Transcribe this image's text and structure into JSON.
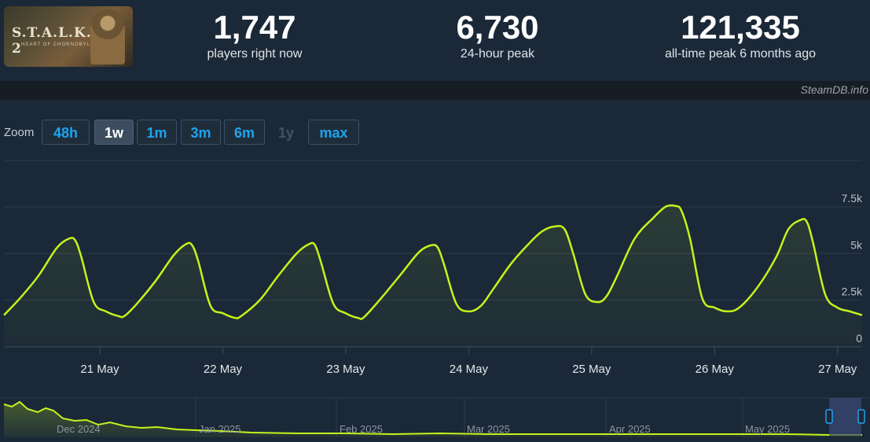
{
  "header": {
    "game_logo": "S.T.A.L.K.E.R. 2",
    "game_logo_sub": "HEART OF CHORNOBYL",
    "stats": [
      {
        "value": "1,747",
        "label": "players right now"
      },
      {
        "value": "6,730",
        "label": "24-hour peak"
      },
      {
        "value": "121,335",
        "label": "all-time peak 6 months ago"
      }
    ]
  },
  "credit": "SteamDB.info",
  "zoom": {
    "label": "Zoom",
    "buttons": [
      {
        "label": "48h",
        "state": "normal"
      },
      {
        "label": "1w",
        "state": "active"
      },
      {
        "label": "1m",
        "state": "normal"
      },
      {
        "label": "3m",
        "state": "normal"
      },
      {
        "label": "6m",
        "state": "normal"
      },
      {
        "label": "1y",
        "state": "disabled"
      },
      {
        "label": "max",
        "state": "normal"
      }
    ]
  },
  "colors": {
    "line": "#c3f41b",
    "grid": "#2e3b48",
    "background": "#1b2838"
  },
  "chart_data": {
    "type": "line",
    "title": "",
    "xlabel": "",
    "ylabel": "",
    "xlim": [
      20.22,
      27.2
    ],
    "ylim": [
      0,
      7500
    ],
    "y_ticks": [
      0,
      2500,
      5000,
      7500
    ],
    "y_tick_labels": [
      "0",
      "2.5k",
      "5k",
      "7.5k"
    ],
    "x_ticks": [
      21,
      22,
      23,
      24,
      25,
      26,
      27
    ],
    "x_tick_labels": [
      "21 May",
      "22 May",
      "23 May",
      "24 May",
      "25 May",
      "26 May",
      "27 May"
    ],
    "grid": true,
    "series": [
      {
        "name": "",
        "x": [
          20.22,
          20.35,
          20.5,
          20.65,
          20.75,
          20.8,
          20.85,
          20.95,
          21.05,
          21.15,
          21.2,
          21.3,
          21.45,
          21.6,
          21.7,
          21.75,
          21.8,
          21.9,
          22.0,
          22.1,
          22.15,
          22.3,
          22.45,
          22.6,
          22.7,
          22.75,
          22.8,
          22.9,
          23.0,
          23.1,
          23.15,
          23.3,
          23.45,
          23.6,
          23.7,
          23.75,
          23.8,
          23.9,
          24.0,
          24.1,
          24.2,
          24.35,
          24.5,
          24.6,
          24.7,
          24.78,
          24.85,
          24.95,
          25.05,
          25.12,
          25.2,
          25.35,
          25.5,
          25.6,
          25.68,
          25.73,
          25.8,
          25.9,
          26.0,
          26.1,
          26.2,
          26.35,
          26.5,
          26.6,
          26.7,
          26.75,
          26.8,
          26.9,
          27.0,
          27.1,
          27.2
        ],
        "y": [
          1700,
          2600,
          3800,
          5300,
          5800,
          5700,
          4800,
          2400,
          1900,
          1650,
          1650,
          2300,
          3500,
          4900,
          5500,
          5450,
          4600,
          2200,
          1800,
          1550,
          1650,
          2500,
          3800,
          5000,
          5500,
          5450,
          4500,
          2300,
          1800,
          1550,
          1600,
          2700,
          3900,
          5100,
          5450,
          5300,
          4400,
          2300,
          1900,
          2200,
          3100,
          4500,
          5600,
          6200,
          6450,
          6300,
          5000,
          2800,
          2400,
          2700,
          3700,
          5800,
          6900,
          7500,
          7550,
          7300,
          5800,
          2600,
          2100,
          1900,
          2100,
          3200,
          4800,
          6300,
          6800,
          6700,
          5600,
          2800,
          2100,
          1900,
          1700
        ]
      }
    ],
    "navigator": {
      "x_tick_labels": [
        "Dec 2024",
        "Jan 2025",
        "Feb 2025",
        "Mar 2025",
        "Apr 2025",
        "May 2025"
      ]
    }
  }
}
